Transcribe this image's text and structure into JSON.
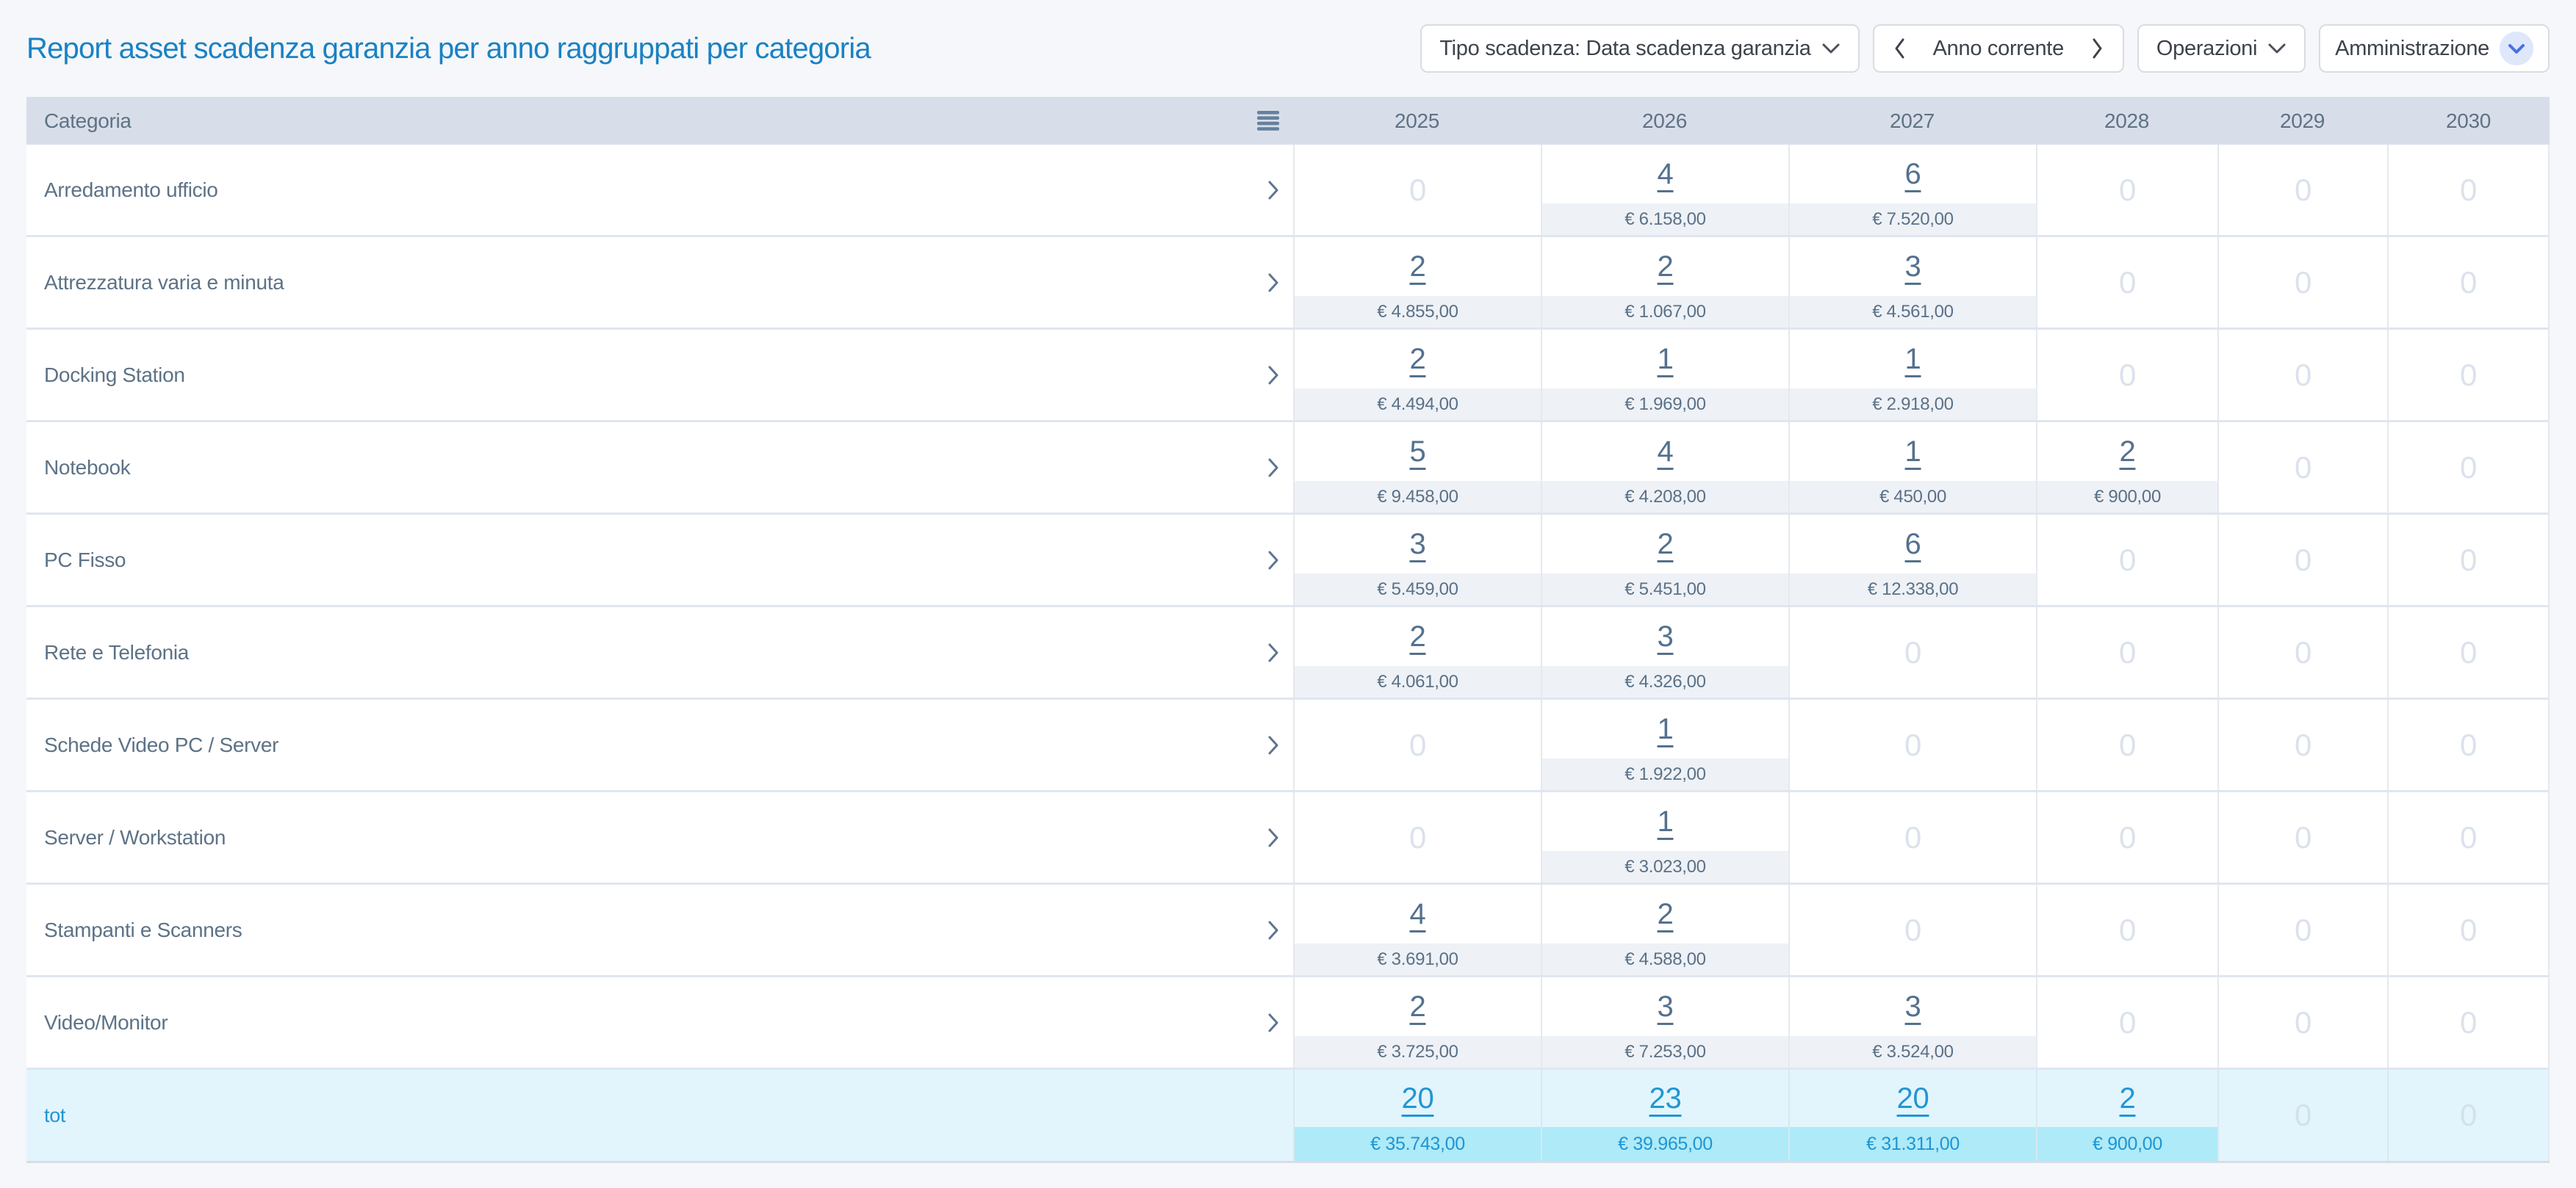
{
  "page": {
    "title": "Report asset scadenza garanzia per anno raggruppati per categoria"
  },
  "toolbar": {
    "tipo_scadenza_label": "Tipo scadenza: Data scadenza garanzia",
    "anno_corrente_label": "Anno corrente",
    "operazioni_label": "Operazioni",
    "amministrazione_label": "Amministrazione"
  },
  "icons": {
    "menu": "menu-icon (4 horizontal bars)",
    "chevron_down": "chevron-down-icon",
    "chevron_left": "chevron-left-icon",
    "chevron_right": "chevron-right-icon"
  },
  "colors": {
    "title_blue": "#1a81c4",
    "header_bg": "#d8dee9",
    "slate_text": "#5d7286",
    "count_link": "#54718e",
    "amount_strip": "#eef1f6",
    "zero_text": "#dbe2ed",
    "total_bg": "#e2f5fd",
    "total_strip": "#aeeaf8",
    "total_blue": "#2196d3",
    "page_bg": "#f5f7fa"
  },
  "table": {
    "first_col_header": "Categoria",
    "year_headers": [
      "2025",
      "2026",
      "2027",
      "2028",
      "2029",
      "2030"
    ],
    "rows": [
      {
        "category": "Arredamento ufficio",
        "cells": [
          {
            "count": "0"
          },
          {
            "count": "4",
            "amount": "€ 6.158,00"
          },
          {
            "count": "6",
            "amount": "€ 7.520,00"
          },
          {
            "count": "0"
          },
          {
            "count": "0"
          },
          {
            "count": "0"
          }
        ]
      },
      {
        "category": "Attrezzatura varia e minuta",
        "cells": [
          {
            "count": "2",
            "amount": "€ 4.855,00"
          },
          {
            "count": "2",
            "amount": "€ 1.067,00"
          },
          {
            "count": "3",
            "amount": "€ 4.561,00"
          },
          {
            "count": "0"
          },
          {
            "count": "0"
          },
          {
            "count": "0"
          }
        ]
      },
      {
        "category": "Docking Station",
        "cells": [
          {
            "count": "2",
            "amount": "€ 4.494,00"
          },
          {
            "count": "1",
            "amount": "€ 1.969,00"
          },
          {
            "count": "1",
            "amount": "€ 2.918,00"
          },
          {
            "count": "0"
          },
          {
            "count": "0"
          },
          {
            "count": "0"
          }
        ]
      },
      {
        "category": "Notebook",
        "cells": [
          {
            "count": "5",
            "amount": "€ 9.458,00"
          },
          {
            "count": "4",
            "amount": "€ 4.208,00"
          },
          {
            "count": "1",
            "amount": "€ 450,00"
          },
          {
            "count": "2",
            "amount": "€ 900,00"
          },
          {
            "count": "0"
          },
          {
            "count": "0"
          }
        ]
      },
      {
        "category": "PC Fisso",
        "cells": [
          {
            "count": "3",
            "amount": "€ 5.459,00"
          },
          {
            "count": "2",
            "amount": "€ 5.451,00"
          },
          {
            "count": "6",
            "amount": "€ 12.338,00"
          },
          {
            "count": "0"
          },
          {
            "count": "0"
          },
          {
            "count": "0"
          }
        ]
      },
      {
        "category": "Rete e Telefonia",
        "cells": [
          {
            "count": "2",
            "amount": "€ 4.061,00"
          },
          {
            "count": "3",
            "amount": "€ 4.326,00"
          },
          {
            "count": "0"
          },
          {
            "count": "0"
          },
          {
            "count": "0"
          },
          {
            "count": "0"
          }
        ]
      },
      {
        "category": "Schede Video PC / Server",
        "cells": [
          {
            "count": "0"
          },
          {
            "count": "1",
            "amount": "€ 1.922,00"
          },
          {
            "count": "0"
          },
          {
            "count": "0"
          },
          {
            "count": "0"
          },
          {
            "count": "0"
          }
        ]
      },
      {
        "category": "Server / Workstation",
        "cells": [
          {
            "count": "0"
          },
          {
            "count": "1",
            "amount": "€ 3.023,00"
          },
          {
            "count": "0"
          },
          {
            "count": "0"
          },
          {
            "count": "0"
          },
          {
            "count": "0"
          }
        ]
      },
      {
        "category": "Stampanti e Scanners",
        "cells": [
          {
            "count": "4",
            "amount": "€ 3.691,00"
          },
          {
            "count": "2",
            "amount": "€ 4.588,00"
          },
          {
            "count": "0"
          },
          {
            "count": "0"
          },
          {
            "count": "0"
          },
          {
            "count": "0"
          }
        ]
      },
      {
        "category": "Video/Monitor",
        "cells": [
          {
            "count": "2",
            "amount": "€ 3.725,00"
          },
          {
            "count": "3",
            "amount": "€ 7.253,00"
          },
          {
            "count": "3",
            "amount": "€ 3.524,00"
          },
          {
            "count": "0"
          },
          {
            "count": "0"
          },
          {
            "count": "0"
          }
        ]
      }
    ],
    "total": {
      "label": "tot",
      "cells": [
        {
          "count": "20",
          "amount": "€ 35.743,00"
        },
        {
          "count": "23",
          "amount": "€ 39.965,00"
        },
        {
          "count": "20",
          "amount": "€ 31.311,00"
        },
        {
          "count": "2",
          "amount": "€ 900,00"
        },
        {
          "count": "0"
        },
        {
          "count": "0"
        }
      ]
    }
  }
}
